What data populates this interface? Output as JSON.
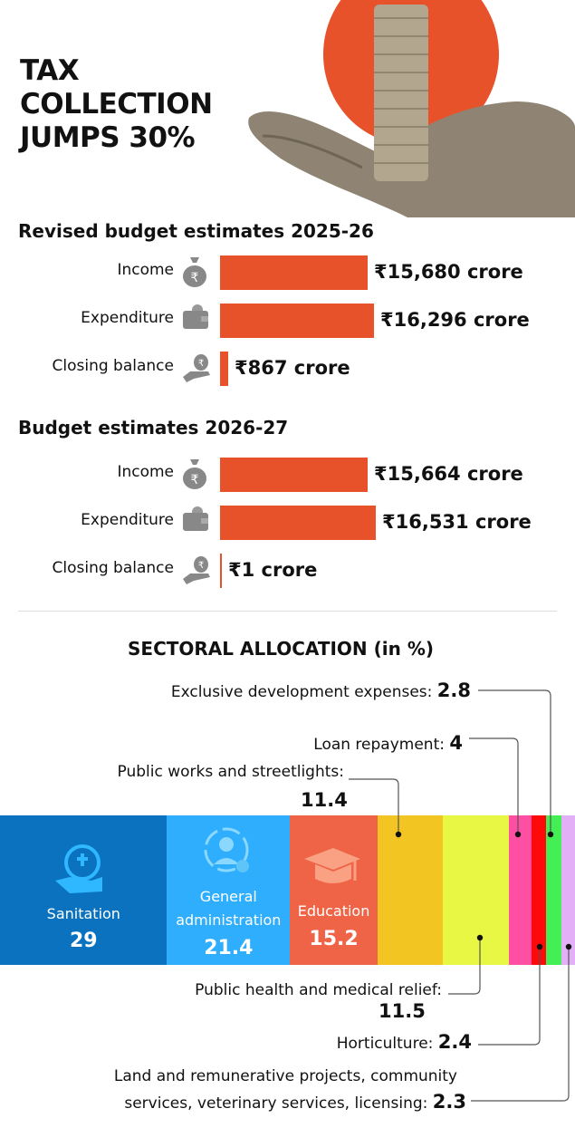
{
  "header": {
    "title_lines": [
      "TAX",
      "COLLECTION",
      "JUMPS 30%"
    ],
    "illustration": "hand-holding-coin-stack-icon",
    "accent": "#e8522a"
  },
  "chart_data": [
    {
      "type": "bar",
      "orientation": "horizontal",
      "title": "Revised budget estimates 2025-26",
      "unit": "crore",
      "categories": [
        "Income",
        "Expenditure",
        "Closing balance"
      ],
      "icons": [
        "money-bag-icon",
        "wallet-icon",
        "hand-money-icon"
      ],
      "values": [
        15680,
        16296,
        867
      ],
      "labels": [
        "₹15,680 crore",
        "₹16,296 crore",
        "₹867 crore"
      ],
      "color": "#e8522a"
    },
    {
      "type": "bar",
      "orientation": "horizontal",
      "title": "Budget estimates 2026-27",
      "unit": "crore",
      "categories": [
        "Income",
        "Expenditure",
        "Closing balance"
      ],
      "icons": [
        "money-bag-icon",
        "wallet-icon",
        "hand-money-icon"
      ],
      "values": [
        15664,
        16531,
        1
      ],
      "labels": [
        "₹15,664 crore",
        "₹16,531 crore",
        "₹1 crore"
      ],
      "color": "#e8522a"
    },
    {
      "type": "stacked-bar",
      "title": "SECTORAL ALLOCATION (in %)",
      "segments": [
        {
          "name": "Sanitation",
          "value": 29,
          "color": "#0a72be"
        },
        {
          "name": "General administration",
          "value": 21.4,
          "color": "#2eaefc"
        },
        {
          "name": "Education",
          "value": 15.2,
          "color": "#ef6446"
        },
        {
          "name": "Public works and streetlights:",
          "value": 11.4,
          "color": "#f2c522"
        },
        {
          "name": "Public health and medical relief:",
          "value": 11.5,
          "color": "#e8f744"
        },
        {
          "name": "Loan repayment:",
          "value": 4,
          "color": "#ff4fa2"
        },
        {
          "name": "Horticulture:",
          "value": 2.4,
          "color": "#ff0a0a"
        },
        {
          "name": "Exclusive development expenses:",
          "value": 2.8,
          "color": "#44ee55"
        },
        {
          "name": "Land and remunerative projects, community services, veterinary services, licensing:",
          "value": 2.3,
          "color": "#e3b0f7"
        }
      ]
    }
  ],
  "sector_text": {
    "sanitation": {
      "label": "Sanitation",
      "value": "29"
    },
    "genadmin": {
      "label1": "General",
      "label2": "administration",
      "value": "21.4"
    },
    "education": {
      "label": "Education",
      "value": "15.2"
    },
    "exclusive": {
      "label": "Exclusive development expenses: ",
      "value": "2.8"
    },
    "loan": {
      "label": "Loan repayment: ",
      "value": "4"
    },
    "works": {
      "label": "Public works and streetlights:",
      "value": "11.4"
    },
    "health": {
      "label": "Public health and medical relief:",
      "value": "11.5"
    },
    "horti": {
      "label": "Horticulture: ",
      "value": "2.4"
    },
    "land": {
      "label1": "Land and remunerative projects, community",
      "label2": "services, veterinary services, licensing: ",
      "value": "2.3"
    }
  }
}
